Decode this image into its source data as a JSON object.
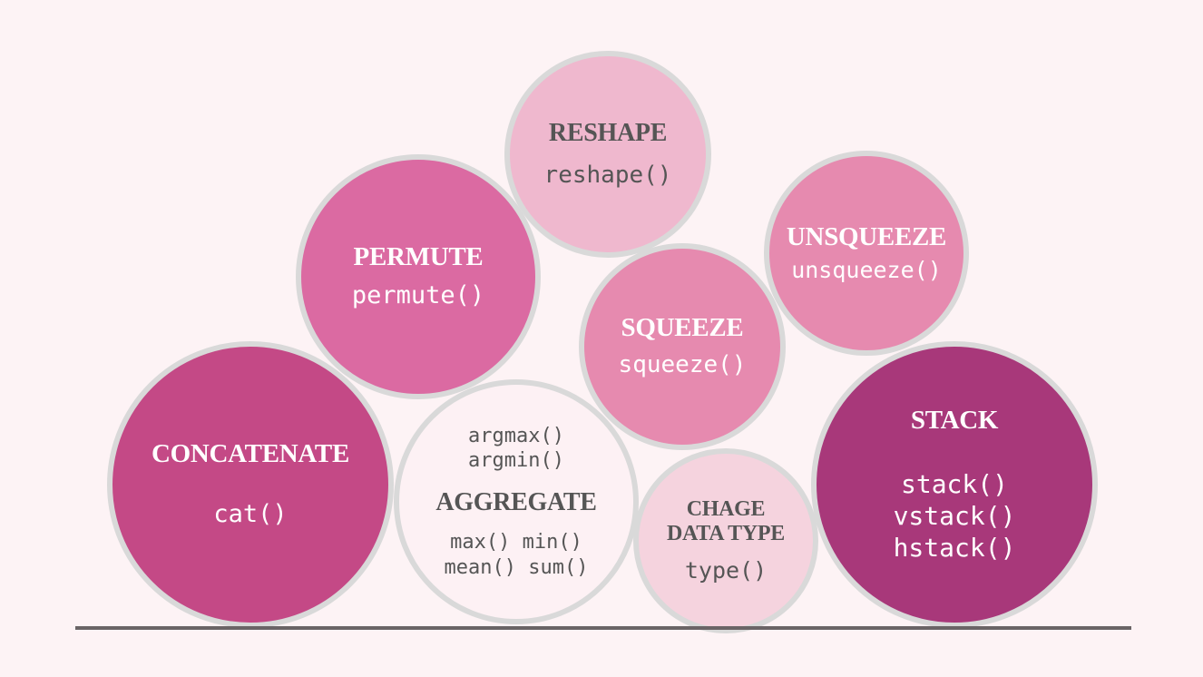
{
  "bubbles": {
    "reshape": {
      "title": "RESHAPE",
      "code": "reshape()"
    },
    "permute": {
      "title": "PERMUTE",
      "code": "permute()"
    },
    "unsqueeze": {
      "title": "UNSQUEEZE",
      "code": "unsqueeze()"
    },
    "squeeze": {
      "title": "SQUEEZE",
      "code": "squeeze()"
    },
    "concatenate": {
      "title": "CONCATENATE",
      "code": "cat()"
    },
    "aggregate": {
      "title": "AGGREGATE",
      "code_top": [
        "argmax()",
        "argmin()"
      ],
      "code_bottom": [
        "max() min()",
        "mean() sum()"
      ]
    },
    "change_data_type": {
      "title_lines": [
        "CHAGE",
        "DATA TYPE"
      ],
      "code": "type()"
    },
    "stack": {
      "title": "STACK",
      "code_lines": [
        "stack()",
        "vstack()",
        "hstack()"
      ]
    }
  },
  "colors": {
    "background": "#fdf3f5",
    "reshape": "#efb8ce",
    "permute": "#db6aa2",
    "unsqueeze": "#e68aaf",
    "squeeze": "#e68aaf",
    "concatenate": "#c44986",
    "aggregate": "#fdf1f4",
    "change_data_type": "#f5d3de",
    "stack": "#a8387a",
    "outline": "#d9d9d9"
  }
}
